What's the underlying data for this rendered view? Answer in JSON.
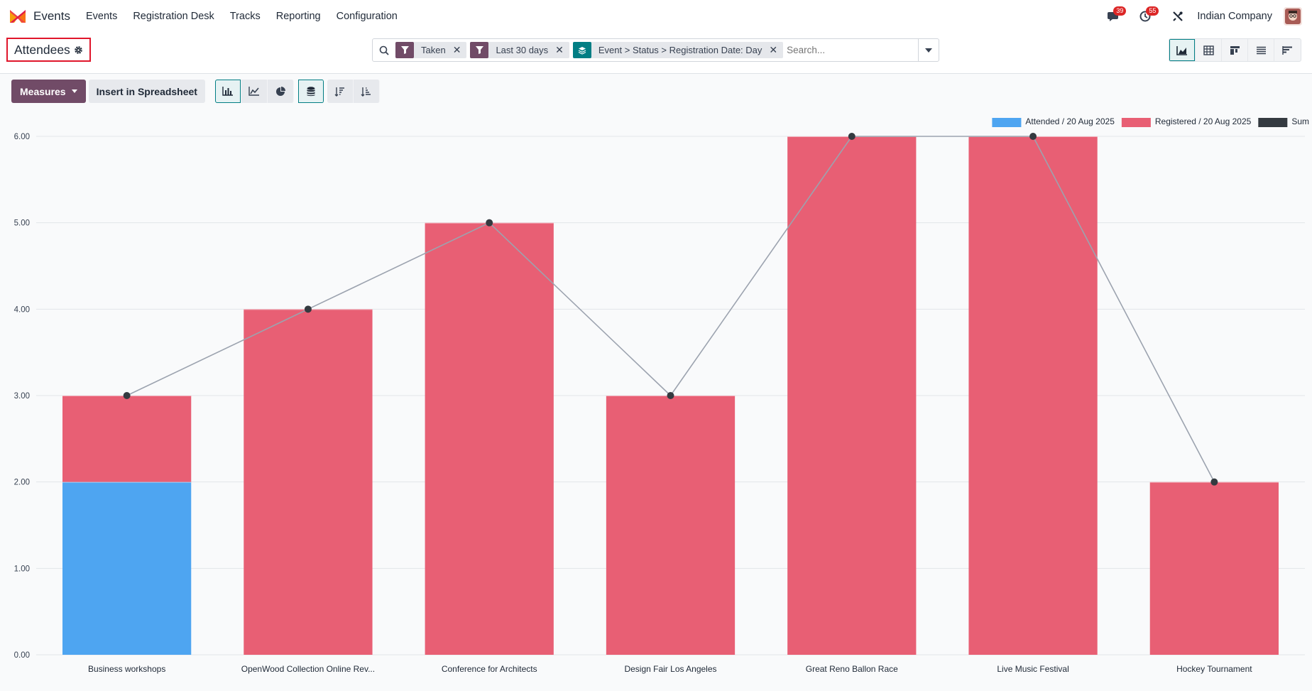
{
  "app": {
    "name": "Events",
    "menu": [
      "Events",
      "Registration Desk",
      "Tracks",
      "Reporting",
      "Configuration"
    ],
    "messages_count": "39",
    "activities_count": "55",
    "company": "Indian Company"
  },
  "control_panel": {
    "title": "Attendees",
    "facets": [
      {
        "label": "Taken",
        "icon": "filter-icon",
        "color": "#714b67"
      },
      {
        "label": "Last 30 days",
        "icon": "filter-icon",
        "color": "#714b67"
      },
      {
        "label": "Event > Status > Registration Date: Day",
        "icon": "group-by-icon",
        "color": "#017e84"
      }
    ],
    "search_placeholder": "Search...",
    "views": [
      "graph-view-icon",
      "pivot-view-icon",
      "kanban-view-icon",
      "list-view-icon",
      "gantt-view-icon"
    ],
    "active_view": "graph"
  },
  "toolbar": {
    "measures_label": "Measures",
    "insert_label": "Insert in Spreadsheet",
    "chart_buttons": [
      "bar-chart-icon",
      "line-chart-icon",
      "pie-chart-icon"
    ],
    "active_chart": "bar",
    "stacked_active": true,
    "sort_buttons": [
      "sort-descending-icon",
      "sort-ascending-icon"
    ]
  },
  "colors": {
    "brand": "#714b67",
    "accent": "#017e84",
    "attended": "#4ea5f1",
    "registered": "#e85f74",
    "sum": "#343a40"
  },
  "chart_data": {
    "type": "bar",
    "stacked": true,
    "categories": [
      "Business workshops",
      "OpenWood Collection Online Rev...",
      "Conference for Architects",
      "Design Fair Los Angeles",
      "Great Reno Ballon Race",
      "Live Music Festival",
      "Hockey Tournament"
    ],
    "series": [
      {
        "name": "Attended / 20 Aug 2025",
        "color": "#4ea5f1",
        "values": [
          2,
          0,
          0,
          0,
          0,
          0,
          0
        ]
      },
      {
        "name": "Registered / 20 Aug 2025",
        "color": "#e85f74",
        "values": [
          1,
          4,
          5,
          3,
          6,
          6,
          2
        ]
      }
    ],
    "sum": {
      "name": "Sum",
      "color": "#343a40",
      "values": [
        3,
        4,
        5,
        3,
        6,
        6,
        2
      ]
    },
    "yticks": [
      "0.00",
      "1.00",
      "2.00",
      "3.00",
      "4.00",
      "5.00",
      "6.00"
    ],
    "ylim": [
      0,
      6
    ],
    "grid": true,
    "legend": "top-right"
  }
}
